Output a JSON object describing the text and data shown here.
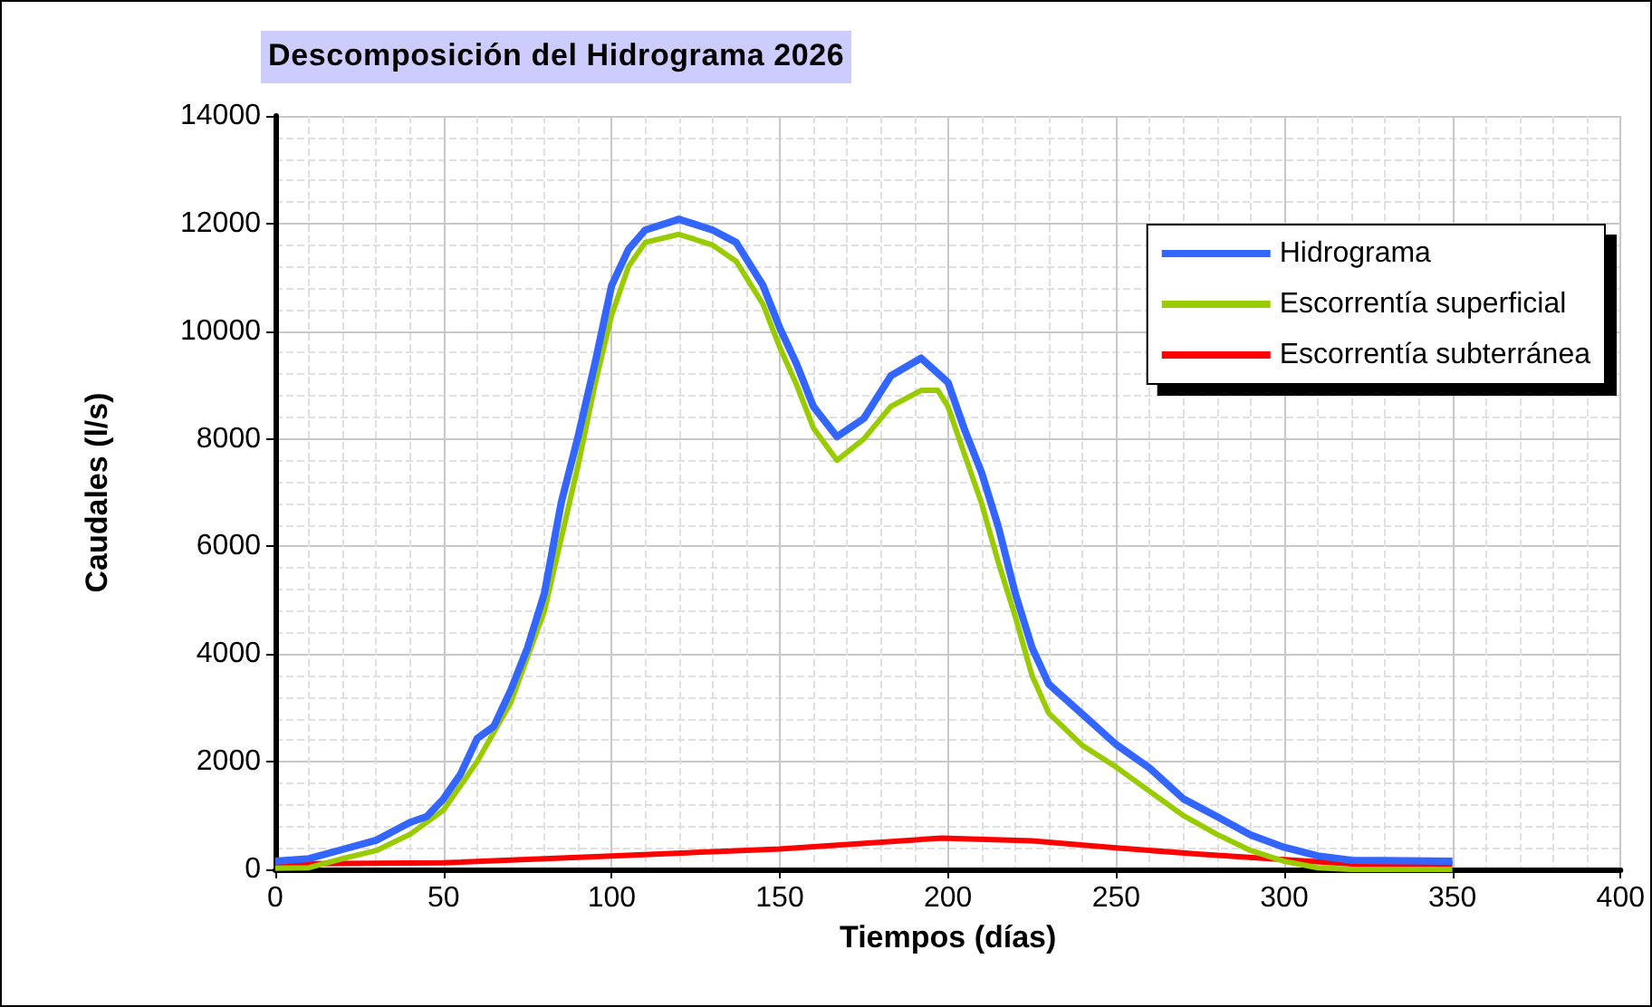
{
  "chart_data": {
    "type": "line",
    "title": "Descomposición del Hidrograma 2026",
    "xlabel": "Tiempos (días)",
    "ylabel": "Caudales (l/s)",
    "xlim": [
      0,
      400
    ],
    "xticks": [
      0,
      50,
      100,
      150,
      200,
      250,
      300,
      350,
      400
    ],
    "ylim": [
      0,
      14000
    ],
    "yticks": [
      0,
      2000,
      4000,
      6000,
      8000,
      10000,
      12000,
      14000
    ],
    "grid": true,
    "legend": "top right",
    "marker": "none",
    "line_style": "solid",
    "series": [
      {
        "name": "Hidrograma",
        "color": "#3366ff",
        "x": [
          0,
          10,
          20,
          30,
          40,
          45,
          50,
          55,
          60,
          65,
          70,
          75,
          80,
          85,
          90,
          95,
          100,
          105,
          110,
          120,
          130,
          137,
          145,
          150,
          155,
          160,
          167,
          175,
          183,
          192,
          200,
          205,
          210,
          215,
          220,
          225,
          230,
          240,
          250,
          260,
          270,
          280,
          290,
          300,
          310,
          320,
          350
        ],
        "values": [
          150,
          200,
          370,
          540,
          870,
          980,
          1310,
          1760,
          2430,
          2660,
          3330,
          4120,
          5130,
          6810,
          8040,
          9390,
          10850,
          11520,
          11880,
          12080,
          11880,
          11650,
          10850,
          10060,
          9390,
          8600,
          8040,
          8380,
          9170,
          9500,
          9050,
          8160,
          7370,
          6360,
          5130,
          4120,
          3440,
          2880,
          2320,
          1880,
          1310,
          980,
          640,
          410,
          250,
          170,
          150
        ]
      },
      {
        "name": "Escorrentía superficial",
        "color": "#99cc00",
        "x": [
          0,
          10,
          20,
          30,
          40,
          50,
          60,
          70,
          80,
          90,
          95,
          100,
          105,
          110,
          120,
          130,
          137,
          145,
          150,
          155,
          160,
          167,
          175,
          183,
          192,
          197,
          200,
          205,
          210,
          215,
          220,
          225,
          230,
          240,
          250,
          260,
          270,
          280,
          290,
          300,
          310,
          320,
          350
        ],
        "values": [
          20,
          30,
          200,
          350,
          650,
          1100,
          2000,
          3100,
          4800,
          7500,
          9000,
          10300,
          11200,
          11650,
          11800,
          11600,
          11300,
          10500,
          9700,
          9000,
          8200,
          7600,
          8000,
          8600,
          8900,
          8900,
          8600,
          7700,
          6800,
          5700,
          4700,
          3600,
          2900,
          2300,
          1900,
          1450,
          1000,
          650,
          350,
          150,
          30,
          0,
          0
        ]
      },
      {
        "name": "Escorrentía subterránea",
        "color": "#ff0000",
        "x": [
          0,
          50,
          100,
          150,
          198,
          225,
          250,
          275,
          300,
          320,
          350
        ],
        "values": [
          100,
          120,
          250,
          380,
          580,
          530,
          400,
          280,
          180,
          100,
          100
        ]
      }
    ]
  }
}
